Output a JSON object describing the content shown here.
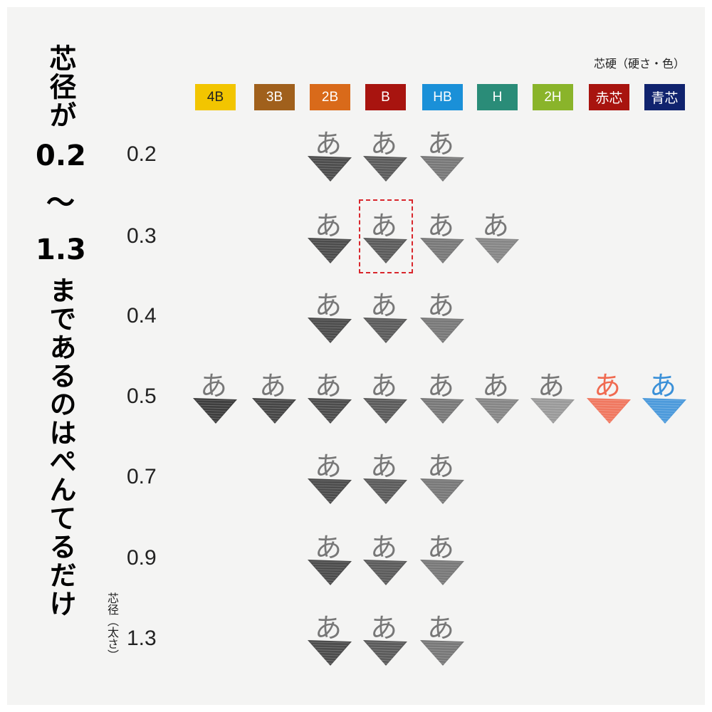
{
  "title": {
    "line1": "芯径が",
    "line2": "0.2",
    "line3": "～",
    "line4": "1.3",
    "line5": "まであるのはぺんてるだけ"
  },
  "legend_title": "芯硬（硬さ・色）",
  "axis_label": "芯径（太さ）",
  "sample_char": "あ",
  "grades": [
    {
      "label": "4B",
      "color": "#f2c500",
      "text_color": "#222222",
      "ink": "#2a2a2a"
    },
    {
      "label": "3B",
      "color": "#a0601c",
      "text_color": "#ffffff",
      "ink": "#333333"
    },
    {
      "label": "2B",
      "color": "#d96a1a",
      "text_color": "#ffffff",
      "ink": "#3a3a3a"
    },
    {
      "label": "B",
      "color": "#a8140f",
      "text_color": "#ffffff",
      "ink": "#4a4a4a"
    },
    {
      "label": "HB",
      "color": "#1a90d8",
      "text_color": "#ffffff",
      "ink": "#6a6a6a"
    },
    {
      "label": "H",
      "color": "#2a8c78",
      "text_color": "#ffffff",
      "ink": "#7a7a7a"
    },
    {
      "label": "2H",
      "color": "#8ab42a",
      "text_color": "#ffffff",
      "ink": "#909090"
    },
    {
      "label": "赤芯",
      "color": "#a8140f",
      "text_color": "#ffffff",
      "ink": "#f06a50"
    },
    {
      "label": "青芯",
      "color": "#10236e",
      "text_color": "#ffffff",
      "ink": "#3a90d8"
    }
  ],
  "diameters": [
    {
      "label": "0.2",
      "available": [
        "2B",
        "B",
        "HB"
      ]
    },
    {
      "label": "0.3",
      "available": [
        "2B",
        "B",
        "HB",
        "H"
      ],
      "highlighted": "B"
    },
    {
      "label": "0.4",
      "available": [
        "2B",
        "B",
        "HB"
      ]
    },
    {
      "label": "0.5",
      "available": [
        "4B",
        "3B",
        "2B",
        "B",
        "HB",
        "H",
        "2H",
        "赤芯",
        "青芯"
      ]
    },
    {
      "label": "0.7",
      "available": [
        "2B",
        "B",
        "HB"
      ]
    },
    {
      "label": "0.9",
      "available": [
        "2B",
        "B",
        "HB"
      ]
    },
    {
      "label": "1.3",
      "available": [
        "2B",
        "B",
        "HB"
      ]
    }
  ],
  "highlight_color": "#d9262c"
}
